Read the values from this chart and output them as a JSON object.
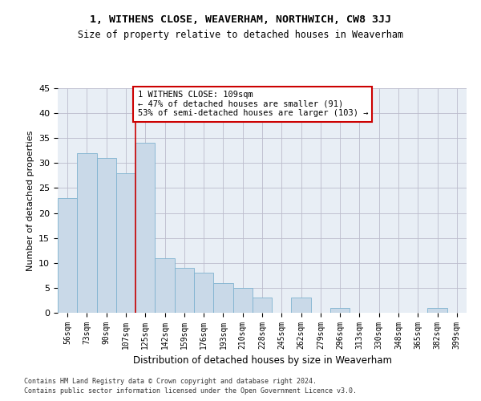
{
  "title1": "1, WITHENS CLOSE, WEAVERHAM, NORTHWICH, CW8 3JJ",
  "title2": "Size of property relative to detached houses in Weaverham",
  "xlabel": "Distribution of detached houses by size in Weaverham",
  "ylabel": "Number of detached properties",
  "footer1": "Contains HM Land Registry data © Crown copyright and database right 2024.",
  "footer2": "Contains public sector information licensed under the Open Government Licence v3.0.",
  "categories": [
    "56sqm",
    "73sqm",
    "90sqm",
    "107sqm",
    "125sqm",
    "142sqm",
    "159sqm",
    "176sqm",
    "193sqm",
    "210sqm",
    "228sqm",
    "245sqm",
    "262sqm",
    "279sqm",
    "296sqm",
    "313sqm",
    "330sqm",
    "348sqm",
    "365sqm",
    "382sqm",
    "399sqm"
  ],
  "values": [
    23,
    32,
    31,
    28,
    34,
    11,
    9,
    8,
    6,
    5,
    3,
    0,
    3,
    0,
    1,
    0,
    0,
    0,
    0,
    1,
    0
  ],
  "bar_color": "#c9d9e8",
  "bar_edge_color": "#7fb3d0",
  "grid_color": "#bbbbcc",
  "vline_color": "#cc0000",
  "annotation_text": "1 WITHENS CLOSE: 109sqm\n← 47% of detached houses are smaller (91)\n53% of semi-detached houses are larger (103) →",
  "annotation_box_color": "#ffffff",
  "annotation_box_edgecolor": "#cc0000",
  "ylim": [
    0,
    45
  ],
  "yticks": [
    0,
    5,
    10,
    15,
    20,
    25,
    30,
    35,
    40,
    45
  ],
  "bg_color": "#e8eef5"
}
